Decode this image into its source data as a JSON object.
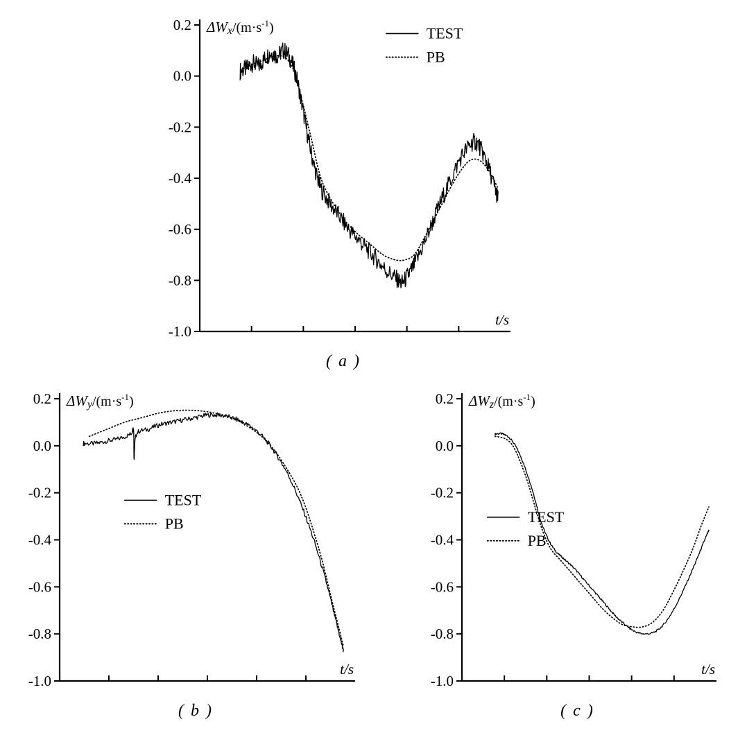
{
  "figure": {
    "legend_labels": [
      "TEST",
      "PB"
    ],
    "line_color": "#000000",
    "background": "#ffffff"
  },
  "chart_data": [
    {
      "type": "line",
      "panel": "a",
      "caption": "( a )",
      "ylabel_sym": "ΔW",
      "ylabel_sub": "x",
      "ylabel_unit_pre": "/(m·s",
      "ylabel_unit_sup": "-1",
      "ylabel_unit_post": ")",
      "xlabel": "t/s",
      "ylim": [
        -1.0,
        0.2
      ],
      "yticks": [
        0.2,
        0.0,
        -0.2,
        -0.4,
        -0.6,
        -0.8,
        -1.0
      ],
      "xlim": [
        0,
        1
      ],
      "xtick_count": 5,
      "grid": false,
      "legend": {
        "fx": 0.6,
        "fy": 0.01,
        "entries": [
          "TEST",
          "PB"
        ]
      },
      "series": [
        {
          "name": "TEST",
          "style": "solid",
          "noise": 0.035,
          "points": [
            [
              0.13,
              0.02
            ],
            [
              0.15,
              0.03
            ],
            [
              0.17,
              0.05
            ],
            [
              0.19,
              0.04
            ],
            [
              0.21,
              0.07
            ],
            [
              0.23,
              0.09
            ],
            [
              0.25,
              0.08
            ],
            [
              0.27,
              0.1
            ],
            [
              0.29,
              0.07
            ],
            [
              0.31,
              0.0
            ],
            [
              0.33,
              -0.12
            ],
            [
              0.35,
              -0.25
            ],
            [
              0.37,
              -0.36
            ],
            [
              0.39,
              -0.44
            ],
            [
              0.42,
              -0.5
            ],
            [
              0.45,
              -0.55
            ],
            [
              0.48,
              -0.6
            ],
            [
              0.51,
              -0.64
            ],
            [
              0.54,
              -0.68
            ],
            [
              0.57,
              -0.72
            ],
            [
              0.6,
              -0.76
            ],
            [
              0.63,
              -0.79
            ],
            [
              0.65,
              -0.81
            ],
            [
              0.67,
              -0.78
            ],
            [
              0.69,
              -0.74
            ],
            [
              0.72,
              -0.66
            ],
            [
              0.75,
              -0.57
            ],
            [
              0.78,
              -0.48
            ],
            [
              0.81,
              -0.4
            ],
            [
              0.84,
              -0.32
            ],
            [
              0.87,
              -0.27
            ],
            [
              0.89,
              -0.26
            ],
            [
              0.91,
              -0.3
            ],
            [
              0.93,
              -0.36
            ],
            [
              0.95,
              -0.44
            ],
            [
              0.96,
              -0.48
            ]
          ]
        },
        {
          "name": "PB",
          "style": "dotted",
          "noise": 0,
          "points": [
            [
              0.14,
              0.03
            ],
            [
              0.2,
              0.06
            ],
            [
              0.26,
              0.08
            ],
            [
              0.3,
              0.03
            ],
            [
              0.33,
              -0.1
            ],
            [
              0.36,
              -0.25
            ],
            [
              0.39,
              -0.4
            ],
            [
              0.43,
              -0.5
            ],
            [
              0.47,
              -0.57
            ],
            [
              0.51,
              -0.62
            ],
            [
              0.55,
              -0.66
            ],
            [
              0.59,
              -0.7
            ],
            [
              0.63,
              -0.72
            ],
            [
              0.66,
              -0.72
            ],
            [
              0.69,
              -0.7
            ],
            [
              0.72,
              -0.64
            ],
            [
              0.75,
              -0.57
            ],
            [
              0.78,
              -0.5
            ],
            [
              0.81,
              -0.43
            ],
            [
              0.84,
              -0.37
            ],
            [
              0.87,
              -0.33
            ],
            [
              0.9,
              -0.33
            ],
            [
              0.93,
              -0.37
            ],
            [
              0.96,
              -0.44
            ]
          ]
        }
      ]
    },
    {
      "type": "line",
      "panel": "b",
      "caption": "( b )",
      "ylabel_sym": "ΔW",
      "ylabel_sub": "y",
      "ylabel_unit_pre": "/(m·s",
      "ylabel_unit_sup": "-1",
      "ylabel_unit_post": ")",
      "xlabel": "t/s",
      "ylim": [
        -1.0,
        0.2
      ],
      "yticks": [
        0.2,
        0.0,
        -0.2,
        -0.4,
        -0.6,
        -0.8,
        -1.0
      ],
      "xlim": [
        0,
        1
      ],
      "xtick_count": 5,
      "grid": false,
      "legend": {
        "fx": 0.22,
        "fy": 0.34,
        "entries": [
          "TEST",
          "PB"
        ]
      },
      "series": [
        {
          "name": "TEST",
          "style": "solid",
          "noise": 0.01,
          "points": [
            [
              0.08,
              0.01
            ],
            [
              0.12,
              0.01
            ],
            [
              0.16,
              0.02
            ],
            [
              0.2,
              0.03
            ],
            [
              0.24,
              0.05
            ],
            [
              0.25,
              0.07
            ],
            [
              0.252,
              -0.05
            ],
            [
              0.26,
              0.05
            ],
            [
              0.3,
              0.07
            ],
            [
              0.34,
              0.09
            ],
            [
              0.38,
              0.1
            ],
            [
              0.42,
              0.11
            ],
            [
              0.46,
              0.12
            ],
            [
              0.5,
              0.13
            ],
            [
              0.54,
              0.13
            ],
            [
              0.58,
              0.12
            ],
            [
              0.62,
              0.1
            ],
            [
              0.66,
              0.07
            ],
            [
              0.7,
              0.02
            ],
            [
              0.74,
              -0.05
            ],
            [
              0.78,
              -0.14
            ],
            [
              0.82,
              -0.26
            ],
            [
              0.86,
              -0.4
            ],
            [
              0.9,
              -0.57
            ],
            [
              0.93,
              -0.72
            ],
            [
              0.95,
              -0.82
            ],
            [
              0.96,
              -0.87
            ]
          ]
        },
        {
          "name": "PB",
          "style": "dotted",
          "noise": 0,
          "points": [
            [
              0.1,
              0.04
            ],
            [
              0.16,
              0.07
            ],
            [
              0.22,
              0.1
            ],
            [
              0.28,
              0.12
            ],
            [
              0.34,
              0.14
            ],
            [
              0.4,
              0.15
            ],
            [
              0.46,
              0.15
            ],
            [
              0.52,
              0.14
            ],
            [
              0.58,
              0.12
            ],
            [
              0.64,
              0.08
            ],
            [
              0.7,
              0.02
            ],
            [
              0.76,
              -0.08
            ],
            [
              0.82,
              -0.22
            ],
            [
              0.88,
              -0.45
            ],
            [
              0.92,
              -0.65
            ],
            [
              0.95,
              -0.8
            ],
            [
              0.96,
              -0.85
            ]
          ]
        }
      ]
    },
    {
      "type": "line",
      "panel": "c",
      "caption": "( c )",
      "ylabel_sym": "ΔW",
      "ylabel_sub": "z",
      "ylabel_unit_pre": "/(m·s",
      "ylabel_unit_sup": "-1",
      "ylabel_unit_post": ")",
      "xlabel": "t/s",
      "ylim": [
        -1.0,
        0.2
      ],
      "yticks": [
        0.2,
        0.0,
        -0.2,
        -0.4,
        -0.6,
        -0.8,
        -1.0
      ],
      "xlim": [
        0,
        1
      ],
      "xtick_count": 5,
      "grid": false,
      "legend": {
        "fx": 0.1,
        "fy": 0.4,
        "entries": [
          "TEST",
          "PB"
        ]
      },
      "series": [
        {
          "name": "TEST",
          "style": "solid",
          "noise": 0.004,
          "points": [
            [
              0.13,
              0.05
            ],
            [
              0.16,
              0.05
            ],
            [
              0.19,
              0.03
            ],
            [
              0.22,
              -0.02
            ],
            [
              0.25,
              -0.1
            ],
            [
              0.28,
              -0.2
            ],
            [
              0.31,
              -0.32
            ],
            [
              0.34,
              -0.4
            ],
            [
              0.37,
              -0.45
            ],
            [
              0.4,
              -0.48
            ],
            [
              0.44,
              -0.52
            ],
            [
              0.48,
              -0.57
            ],
            [
              0.52,
              -0.62
            ],
            [
              0.56,
              -0.67
            ],
            [
              0.6,
              -0.72
            ],
            [
              0.64,
              -0.76
            ],
            [
              0.68,
              -0.79
            ],
            [
              0.72,
              -0.8
            ],
            [
              0.76,
              -0.79
            ],
            [
              0.8,
              -0.75
            ],
            [
              0.84,
              -0.68
            ],
            [
              0.88,
              -0.59
            ],
            [
              0.92,
              -0.49
            ],
            [
              0.95,
              -0.41
            ],
            [
              0.97,
              -0.36
            ]
          ]
        },
        {
          "name": "PB",
          "style": "dotted",
          "noise": 0,
          "points": [
            [
              0.13,
              0.04
            ],
            [
              0.17,
              0.03
            ],
            [
              0.2,
              0.0
            ],
            [
              0.23,
              -0.07
            ],
            [
              0.26,
              -0.16
            ],
            [
              0.29,
              -0.27
            ],
            [
              0.32,
              -0.37
            ],
            [
              0.35,
              -0.44
            ],
            [
              0.39,
              -0.49
            ],
            [
              0.43,
              -0.54
            ],
            [
              0.47,
              -0.59
            ],
            [
              0.51,
              -0.64
            ],
            [
              0.55,
              -0.69
            ],
            [
              0.59,
              -0.73
            ],
            [
              0.63,
              -0.76
            ],
            [
              0.67,
              -0.77
            ],
            [
              0.71,
              -0.77
            ],
            [
              0.75,
              -0.75
            ],
            [
              0.79,
              -0.7
            ],
            [
              0.83,
              -0.62
            ],
            [
              0.87,
              -0.53
            ],
            [
              0.91,
              -0.43
            ],
            [
              0.94,
              -0.34
            ],
            [
              0.97,
              -0.26
            ]
          ]
        }
      ]
    }
  ]
}
